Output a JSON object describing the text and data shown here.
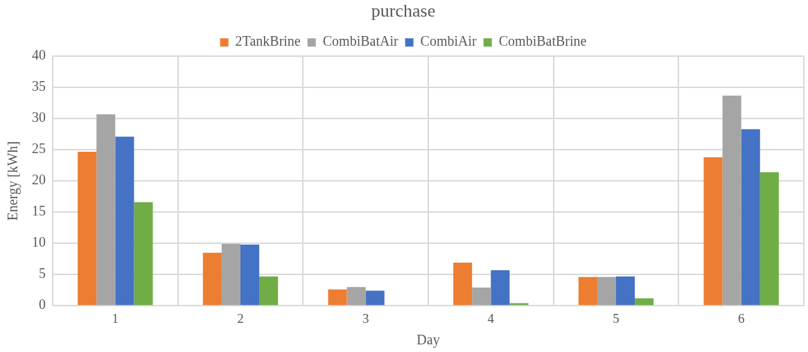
{
  "chart_data": {
    "type": "bar",
    "title": "purchase",
    "xlabel": "Day",
    "ylabel": "Energy [kWh]",
    "categories": [
      "1",
      "2",
      "3",
      "4",
      "5",
      "6"
    ],
    "series": [
      {
        "name": "2TankBrine",
        "color": "#ed7d31",
        "values": [
          24.7,
          8.5,
          2.6,
          6.9,
          4.6,
          23.8
        ]
      },
      {
        "name": "CombiBatAir",
        "color": "#a5a5a5",
        "values": [
          30.7,
          9.9,
          3.0,
          2.9,
          4.6,
          33.7
        ]
      },
      {
        "name": "CombiAir",
        "color": "#4472c4",
        "values": [
          27.1,
          9.8,
          2.4,
          5.7,
          4.7,
          28.3
        ]
      },
      {
        "name": "CombiBatBrine",
        "color": "#70ad47",
        "values": [
          16.6,
          4.7,
          0,
          0.4,
          1.2,
          21.4
        ]
      }
    ],
    "ylim": [
      0,
      40
    ],
    "yticks": [
      0,
      5,
      10,
      15,
      20,
      25,
      30,
      35,
      40
    ],
    "grid": true,
    "legend": "top"
  }
}
